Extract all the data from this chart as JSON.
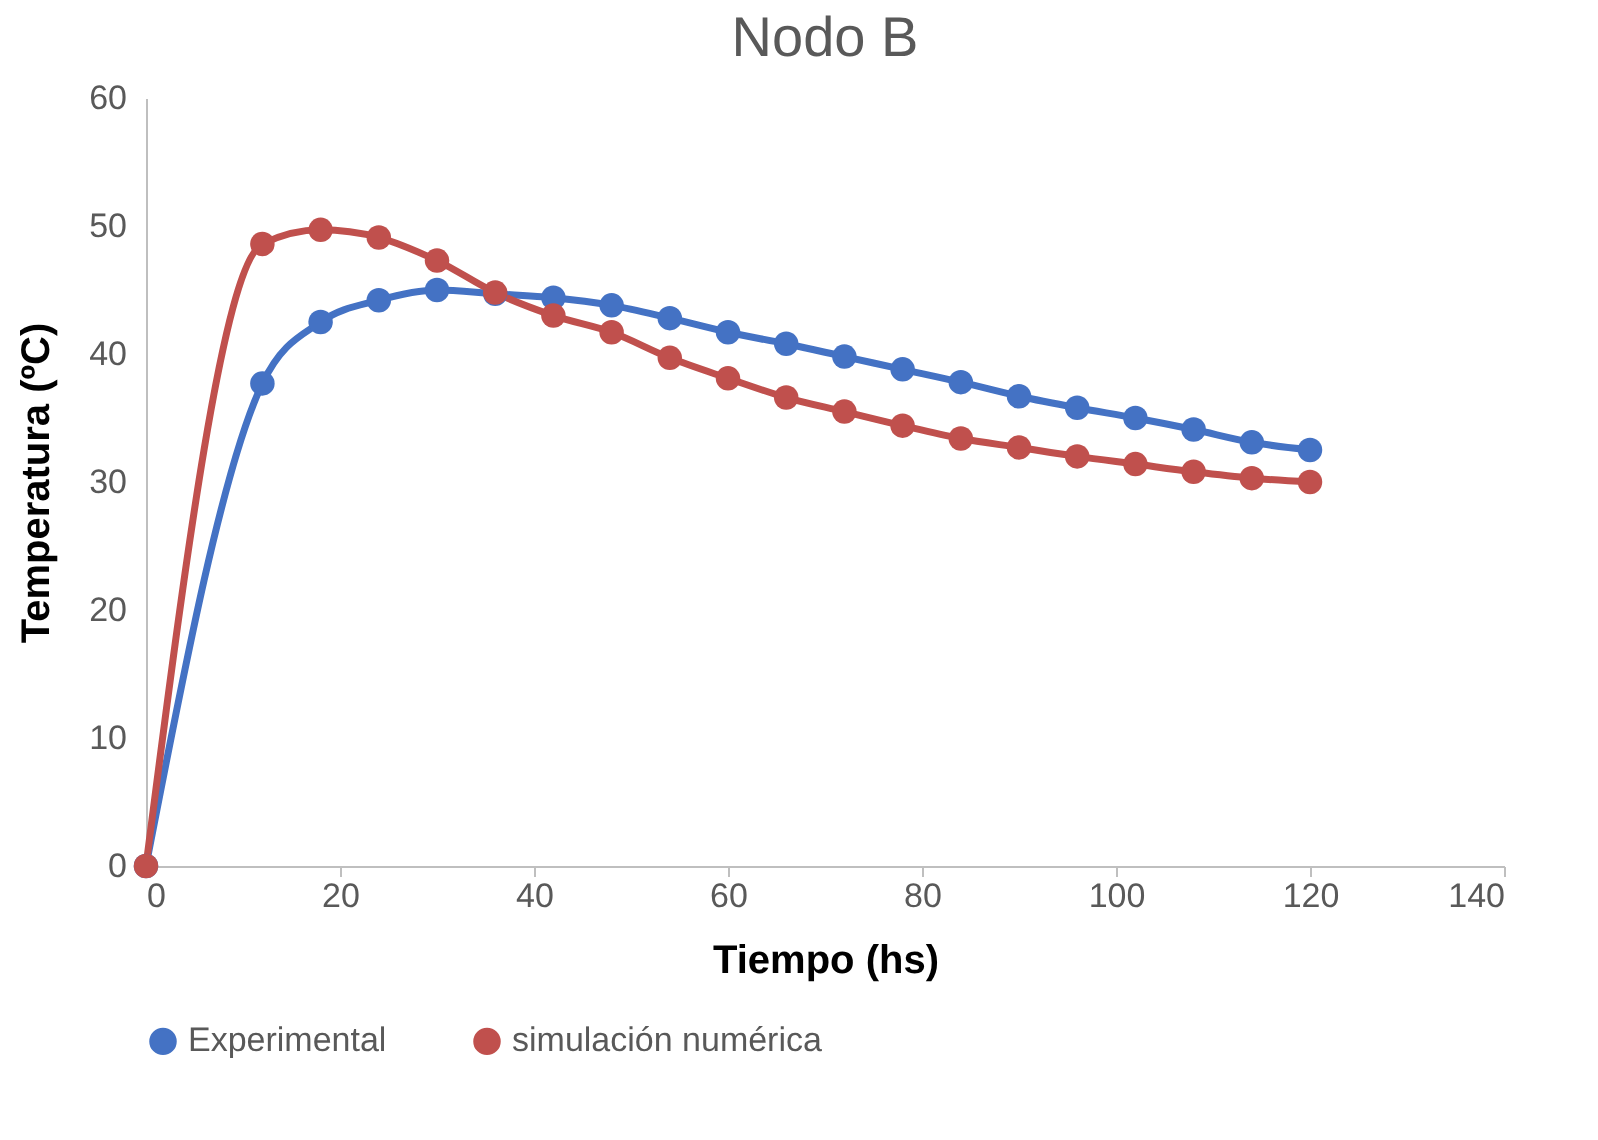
{
  "chart_data": {
    "type": "line",
    "title": "Nodo B",
    "xlabel": "Tiempo (hs)",
    "ylabel": "Temperatura (ºC)",
    "x": [
      0,
      12,
      18,
      24,
      30,
      36,
      42,
      48,
      54,
      60,
      66,
      72,
      78,
      84,
      90,
      96,
      102,
      108,
      114,
      120
    ],
    "xlim": [
      0,
      140
    ],
    "xticks": [
      0,
      20,
      40,
      60,
      80,
      100,
      120,
      140
    ],
    "ylim": [
      0,
      60
    ],
    "yticks": [
      0,
      10,
      20,
      30,
      40,
      50,
      60
    ],
    "legend": "bottom",
    "marker": "circle",
    "series": [
      {
        "name": "Experimental",
        "color": "#4472c4",
        "values": [
          0,
          37.7,
          42.5,
          44.2,
          45.0,
          44.7,
          44.4,
          43.8,
          42.8,
          41.7,
          40.8,
          39.8,
          38.8,
          37.8,
          36.7,
          35.8,
          35.0,
          34.1,
          33.1,
          32.5
        ]
      },
      {
        "name": "simulación numérica",
        "color": "#c0504d",
        "values": [
          0,
          48.6,
          49.7,
          49.1,
          47.3,
          44.8,
          43.0,
          41.7,
          39.7,
          38.1,
          36.6,
          35.5,
          34.4,
          33.4,
          32.7,
          32.0,
          31.4,
          30.8,
          30.3,
          30.0
        ]
      }
    ]
  }
}
